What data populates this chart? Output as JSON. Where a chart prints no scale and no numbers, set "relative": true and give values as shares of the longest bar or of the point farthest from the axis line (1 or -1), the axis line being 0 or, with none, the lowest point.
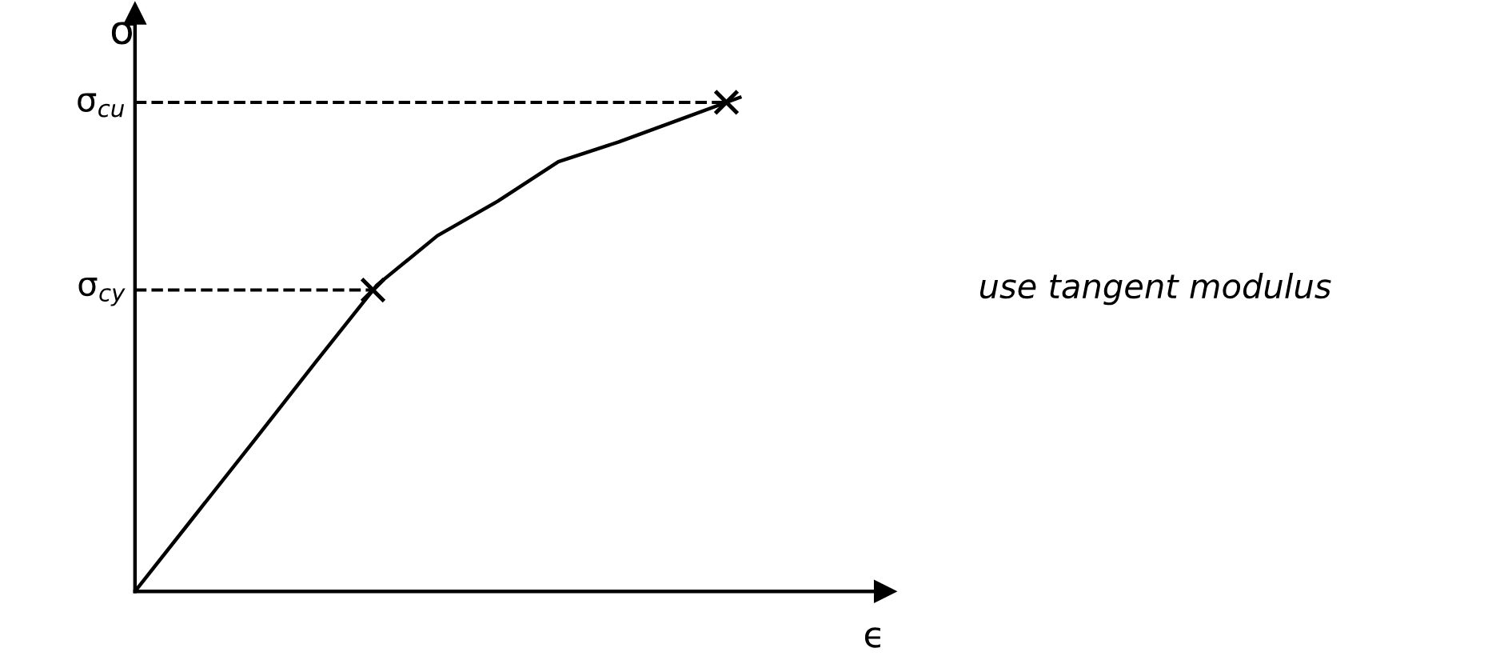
{
  "chart_data": {
    "type": "line",
    "relative": true,
    "xlabel": "ϵ",
    "ylabel": "σ",
    "categories": [
      null,
      null,
      null,
      null,
      null,
      null,
      null,
      null,
      null,
      null,
      null
    ],
    "series": [
      {
        "color": "#000000",
        "values": [
          0,
          0.155,
          0.31,
          0.466,
          0.62,
          0.72,
          0.79,
          0.87,
          0.91,
          0.955,
          1
        ]
      }
    ],
    "ref_lines": [
      {
        "axis": "y",
        "value": 0.99,
        "label": "σ$_{cu}$",
        "line_style": "dashed",
        "color": "#000000"
      },
      {
        "axis": "y",
        "value": 0.61,
        "label": "σ$_{cy}$",
        "line_style": "dashed",
        "color": "#000000"
      }
    ],
    "annotations": [
      "use tangent modulus"
    ],
    "line_style": "solid"
  }
}
